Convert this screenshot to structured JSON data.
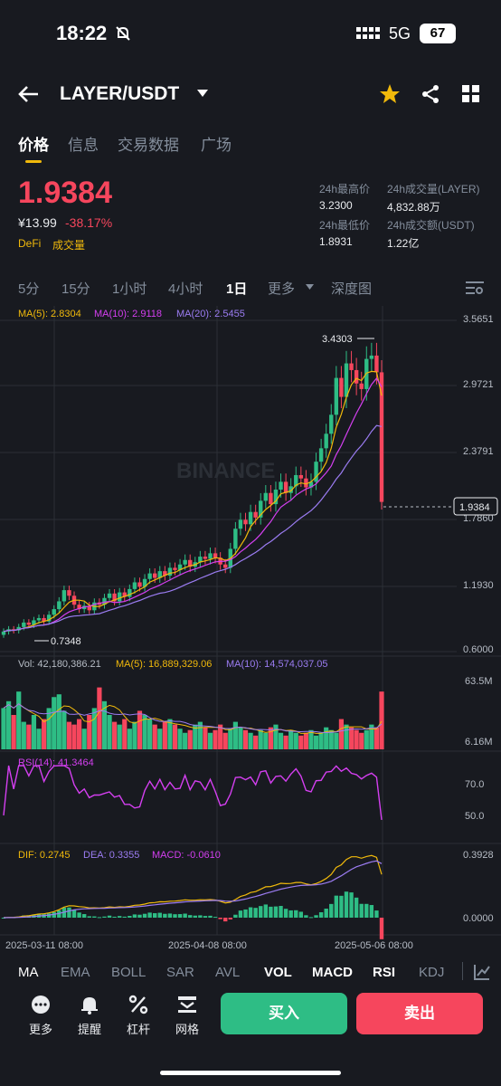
{
  "status_bar": {
    "time": "18:22",
    "network": "5G",
    "battery": "67"
  },
  "header": {
    "pair": "LAYER/USDT"
  },
  "tabs": [
    "价格",
    "信息",
    "交易数据",
    "广场"
  ],
  "ticker": {
    "price": "1.9384",
    "cny": "¥13.99",
    "change": "-38.17%",
    "tags": [
      "DeFi",
      "成交量"
    ],
    "stats": [
      {
        "label": "24h最高价",
        "value": "3.2300"
      },
      {
        "label": "24h成交量(LAYER)",
        "value": "4,832.88万"
      },
      {
        "label": "24h最低价",
        "value": "1.8931"
      },
      {
        "label": "24h成交额(USDT)",
        "value": "1.22亿"
      }
    ]
  },
  "intervals": [
    "5分",
    "15分",
    "1小时",
    "4小时",
    "1日",
    "更多",
    "深度图"
  ],
  "chart_data": {
    "type": "candlestick",
    "ma_legend": {
      "ma5": "MA(5): 2.8304",
      "ma10": "MA(10): 2.9118",
      "ma20": "MA(20): 2.5455"
    },
    "price_axis": [
      "3.5651",
      "2.9721",
      "2.3791",
      "1.7860",
      "1.1930",
      "0.6000"
    ],
    "ylim": [
      0.6,
      3.5651
    ],
    "high_label": "3.4303",
    "low_label": "0.7348",
    "last_price": "1.9384",
    "watermark": "BINANCE",
    "x_labels": [
      "2025-03-11 08:00",
      "2025-04-08 08:00",
      "2025-05-06 08:00"
    ],
    "closes": [
      0.78,
      0.8,
      0.79,
      0.82,
      0.86,
      0.84,
      0.88,
      0.9,
      0.87,
      0.93,
      0.98,
      1.05,
      1.15,
      1.1,
      1.02,
      0.98,
      1.01,
      0.97,
      1.04,
      1.02,
      1.08,
      1.12,
      1.05,
      1.13,
      1.09,
      1.16,
      1.22,
      1.18,
      1.25,
      1.3,
      1.26,
      1.32,
      1.28,
      1.35,
      1.33,
      1.38,
      1.42,
      1.36,
      1.4,
      1.45,
      1.43,
      1.48,
      1.44,
      1.38,
      1.35,
      1.52,
      1.7,
      1.78,
      1.74,
      1.85,
      1.8,
      1.95,
      2.02,
      1.92,
      2.05,
      2.12,
      2.02,
      2.08,
      2.18,
      2.15,
      2.07,
      2.12,
      2.3,
      2.42,
      2.55,
      2.72,
      3.05,
      2.88,
      3.18,
      3.12,
      3.0,
      2.95,
      3.22,
      3.25,
      3.1,
      1.94
    ],
    "volume": {
      "legend": {
        "vol": "Vol: 42,180,386.21",
        "ma5": "MA(5): 16,889,329.06",
        "ma10": "MA(10): 14,574,037.05"
      },
      "axis": [
        "63.5M",
        "6.16M"
      ],
      "values": [
        30,
        35,
        25,
        42,
        20,
        18,
        25,
        15,
        22,
        30,
        38,
        40,
        28,
        20,
        18,
        22,
        15,
        25,
        30,
        45,
        35,
        25,
        20,
        18,
        22,
        15,
        20,
        28,
        25,
        22,
        18,
        15,
        20,
        22,
        18,
        15,
        12,
        14,
        18,
        20,
        16,
        12,
        14,
        18,
        12,
        15,
        20,
        16,
        14,
        12,
        10,
        14,
        12,
        16,
        18,
        12,
        10,
        14,
        12,
        10,
        12,
        14,
        10,
        12,
        16,
        14,
        12,
        22,
        18,
        16,
        14,
        12,
        14,
        18,
        16,
        42
      ]
    },
    "rsi": {
      "legend": "RSI(14): 41.3464",
      "axis": [
        "70.0",
        "50.0"
      ]
    },
    "macd": {
      "legend": {
        "dif": "DIF: 0.2745",
        "dea": "DEA: 0.3355",
        "macd": "MACD: -0.0610"
      },
      "axis": [
        "0.3928",
        "0.0000"
      ]
    }
  },
  "indicators": [
    "MA",
    "EMA",
    "BOLL",
    "SAR",
    "AVL",
    "VOL",
    "MACD",
    "RSI",
    "KDJ"
  ],
  "toolbar": [
    {
      "label": "更多",
      "icon": "more-dots-icon"
    },
    {
      "label": "提醒",
      "icon": "bell-icon"
    },
    {
      "label": "杠杆",
      "icon": "percent-icon"
    },
    {
      "label": "网格",
      "icon": "grid-bot-icon"
    }
  ],
  "actions": {
    "buy": "买入",
    "sell": "卖出"
  },
  "colors": {
    "up": "#2ebd85",
    "down": "#f6465d",
    "accent": "#f0b90b",
    "ma10": "#d43ff0",
    "ma20": "#9b7cf2"
  }
}
